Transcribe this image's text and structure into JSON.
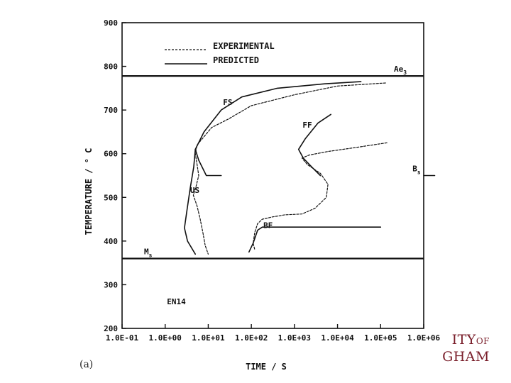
{
  "chart_data": {
    "type": "line",
    "title": "",
    "xlabel": "TIME / S",
    "ylabel": "TEMPERATURE / ° C",
    "x_scale": "log",
    "xlim": [
      0.1,
      1000000
    ],
    "ylim": [
      200,
      900
    ],
    "x_ticks": [
      {
        "value": 0.1,
        "label": "1.0E-01"
      },
      {
        "value": 1,
        "label": "1.0E+00"
      },
      {
        "value": 10,
        "label": "1.0E+01"
      },
      {
        "value": 100,
        "label": "1.0E+02"
      },
      {
        "value": 1000,
        "label": "1.0E+03"
      },
      {
        "value": 10000,
        "label": "1.0E+04"
      },
      {
        "value": 100000,
        "label": "1.0E+05"
      },
      {
        "value": 1000000,
        "label": "1.0E+06"
      }
    ],
    "y_ticks": [
      {
        "value": 200,
        "label": "200"
      },
      {
        "value": 300,
        "label": "300"
      },
      {
        "value": 400,
        "label": "400"
      },
      {
        "value": 500,
        "label": "500"
      },
      {
        "value": 600,
        "label": "600"
      },
      {
        "value": 700,
        "label": "700"
      },
      {
        "value": 800,
        "label": "800"
      },
      {
        "value": 900,
        "label": "900"
      }
    ],
    "legend": {
      "placement": "top",
      "entries": [
        {
          "label": "EXPERIMENTAL",
          "style": "dashed"
        },
        {
          "label": "PREDICTED",
          "style": "solid"
        }
      ]
    },
    "reference_lines": [
      {
        "label": "Ae3",
        "y": 778
      },
      {
        "label": "Ms",
        "y": 360
      }
    ],
    "series": [
      {
        "style": "solid",
        "segments": [
          [
            [
              35000,
              765
            ],
            [
              5000,
              760
            ],
            [
              400,
              750
            ],
            [
              60,
              730
            ],
            [
              20,
              700
            ],
            [
              8,
              650
            ],
            [
              5,
              610
            ],
            [
              6,
              585
            ],
            [
              9,
              550
            ],
            [
              20,
              550
            ]
          ]
        ]
      },
      {
        "style": "solid",
        "segments": [
          [
            [
              5,
              610
            ],
            [
              4.6,
              570
            ],
            [
              3.8,
              520
            ],
            [
              3.2,
              470
            ],
            [
              2.8,
              430
            ],
            [
              3.3,
              400
            ],
            [
              5,
              370
            ]
          ]
        ]
      },
      {
        "style": "solid",
        "segments": [
          [
            [
              7000,
              690
            ],
            [
              3500,
              670
            ],
            [
              1800,
              635
            ],
            [
              1250,
              610
            ],
            [
              1600,
              590
            ],
            [
              2500,
              570
            ],
            [
              4000,
              550
            ]
          ]
        ]
      },
      {
        "style": "solid",
        "segments": [
          [
            [
              88,
              375
            ],
            [
              110,
              395
            ],
            [
              140,
              425
            ],
            [
              180,
              432
            ],
            [
              100000,
              432
            ]
          ]
        ]
      },
      {
        "style": "solid",
        "segments": [
          [
            [
              1000000,
              550
            ],
            [
              1800000,
              550
            ]
          ]
        ]
      },
      {
        "style": "dashed",
        "segments": [
          [
            [
              130000,
              762
            ],
            [
              10000,
              755
            ],
            [
              1000,
              735
            ],
            [
              100,
              710
            ],
            [
              30,
              680
            ],
            [
              12,
              660
            ],
            [
              5.5,
              620
            ],
            [
              5,
              600
            ],
            [
              5.5,
              575
            ],
            [
              6,
              550
            ],
            [
              5.2,
              525
            ],
            [
              4.5,
              505
            ],
            [
              5.5,
              480
            ],
            [
              6.5,
              450
            ],
            [
              7.5,
              420
            ],
            [
              8.5,
              390
            ],
            [
              10,
              370
            ]
          ]
        ]
      },
      {
        "style": "dashed",
        "segments": [
          [
            [
              140000,
              625
            ],
            [
              30000,
              615
            ],
            [
              6000,
              605
            ],
            [
              2200,
              597
            ],
            [
              1500,
              590
            ],
            [
              2000,
              575
            ],
            [
              4000,
              555
            ],
            [
              6000,
              530
            ],
            [
              5500,
              500
            ],
            [
              3000,
              475
            ],
            [
              1500,
              462
            ],
            [
              600,
              460
            ],
            [
              300,
              455
            ],
            [
              180,
              450
            ],
            [
              140,
              440
            ],
            [
              120,
              420
            ],
            [
              110,
              395
            ],
            [
              120,
              380
            ]
          ]
        ]
      }
    ],
    "annotations": [
      {
        "text": "FS",
        "x": 22,
        "y": 712
      },
      {
        "text": "FF",
        "x": 1550,
        "y": 660
      },
      {
        "text": "B",
        "sub": "s",
        "x": 550000,
        "y": 560
      },
      {
        "text": "US",
        "x": 3.8,
        "y": 510
      },
      {
        "text": "BF",
        "x": 190,
        "y": 430
      },
      {
        "text": "EN14",
        "x": 1.1,
        "y": 255
      }
    ]
  },
  "figure_label": "(a)",
  "logo": {
    "line1": "ITY",
    "line1_small": "OF",
    "line2": "GHAM"
  }
}
